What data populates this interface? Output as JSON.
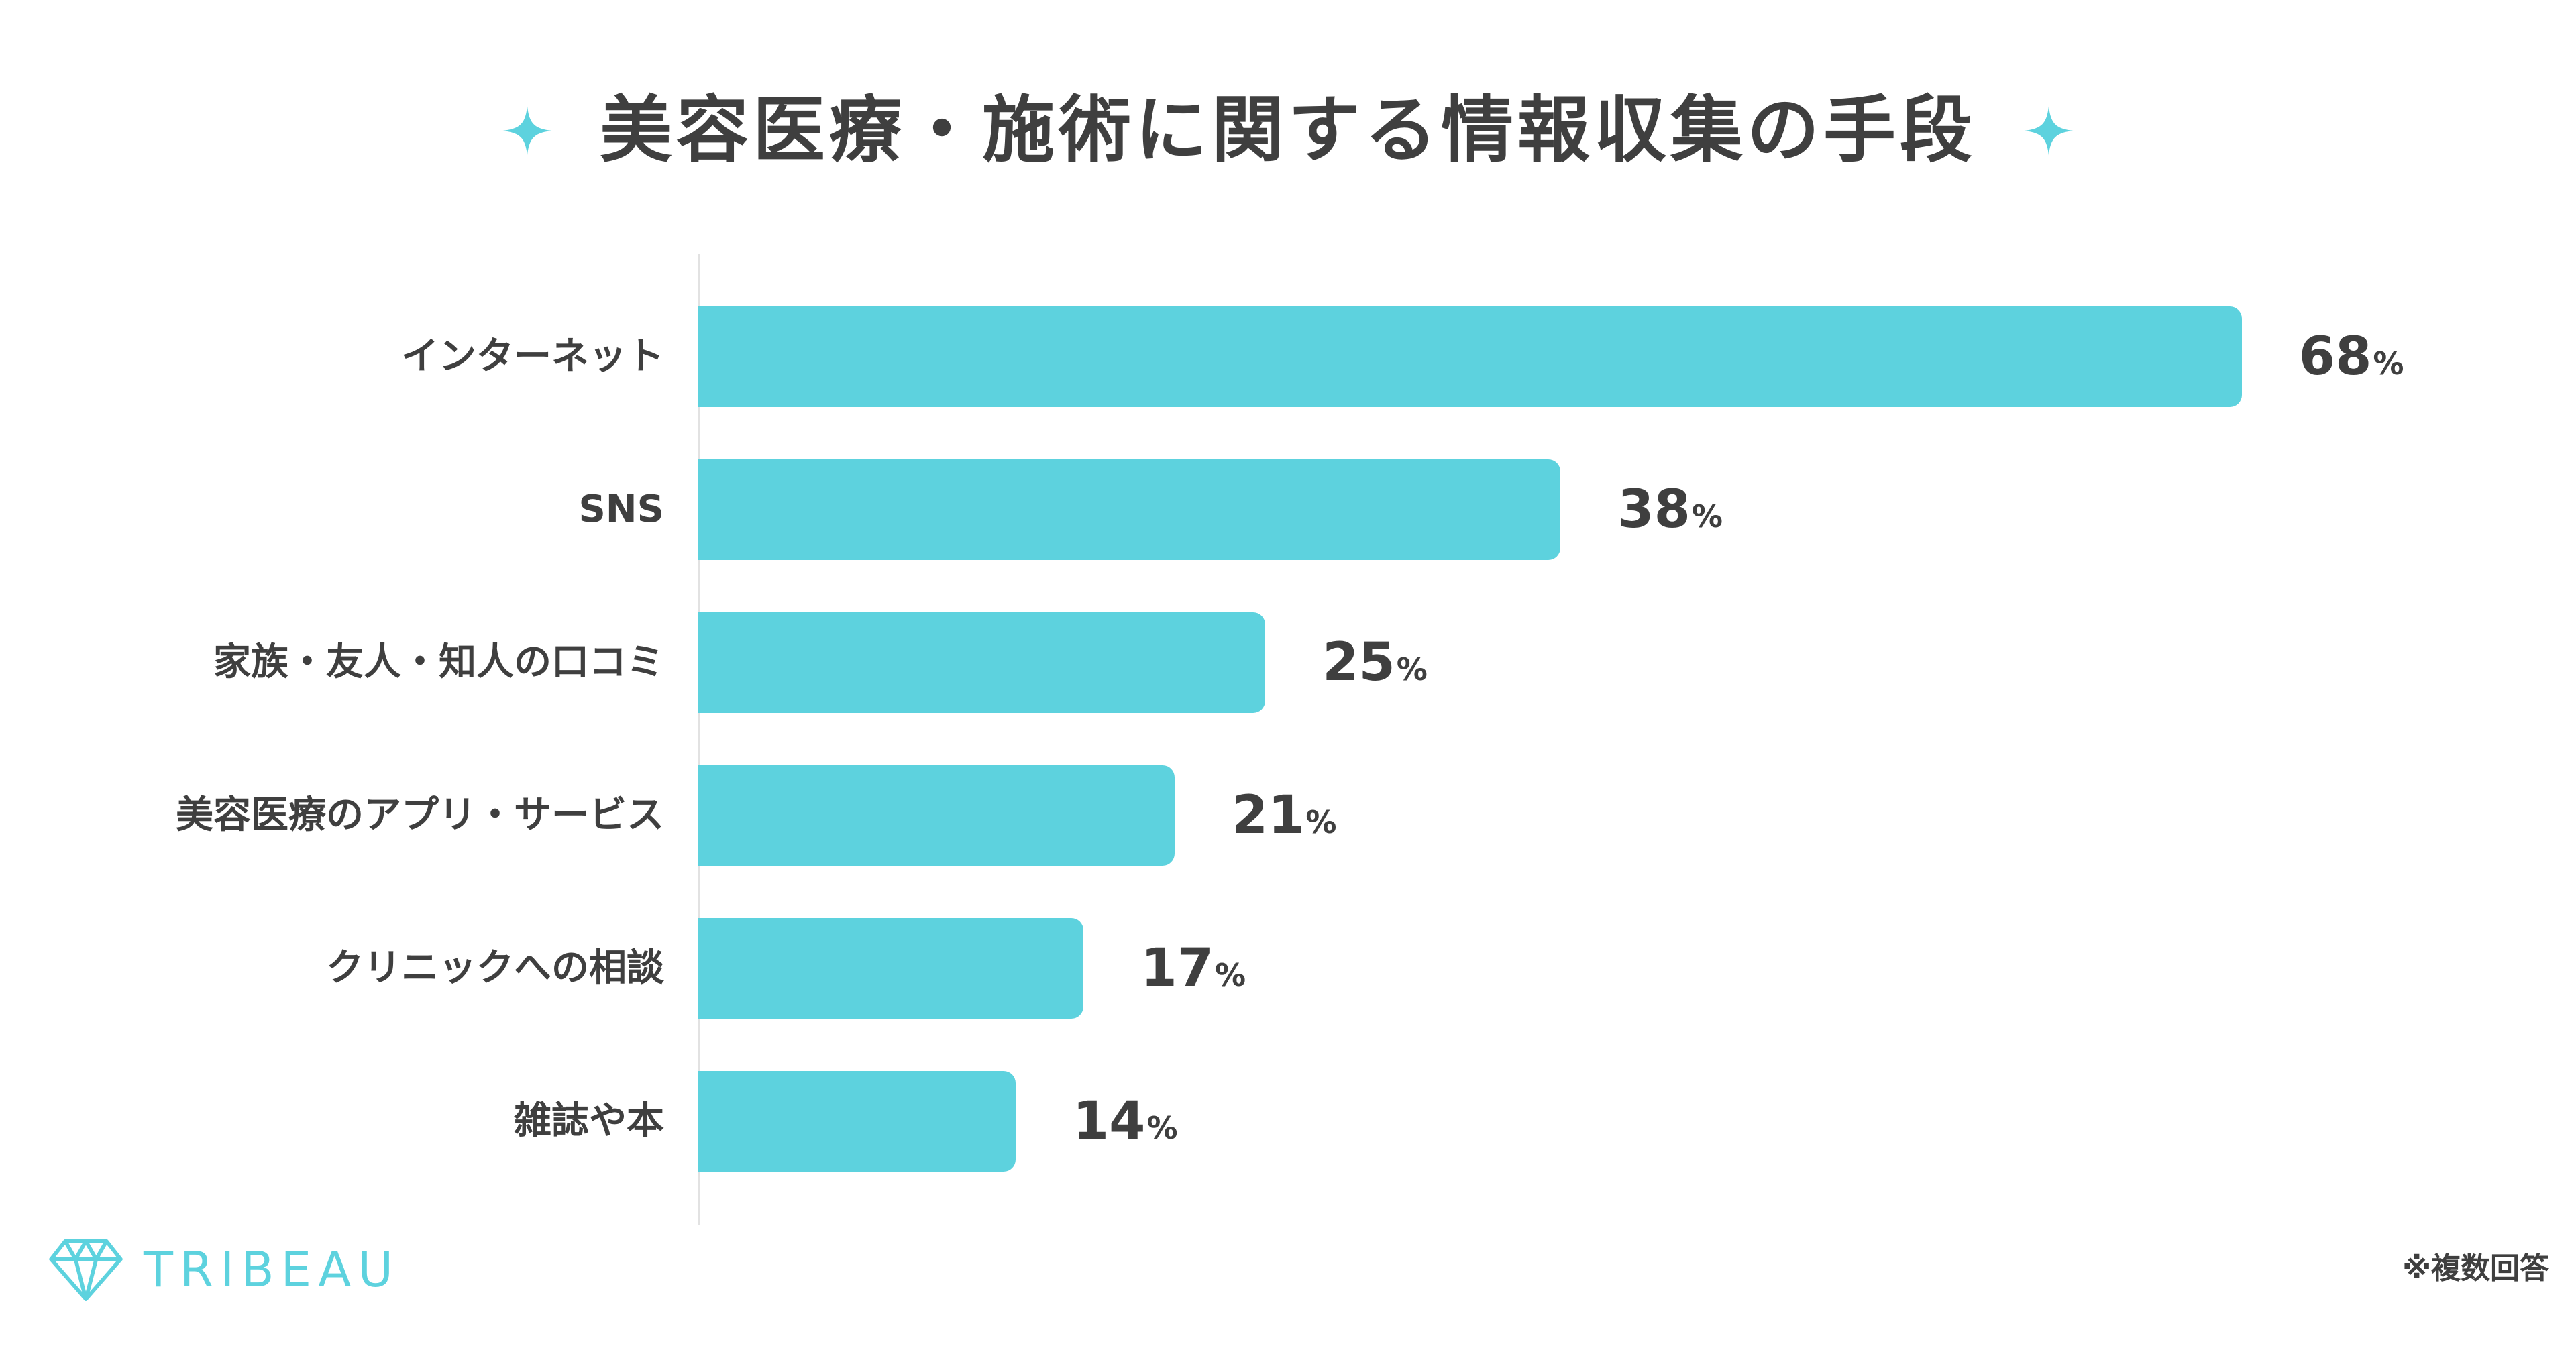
{
  "chart_data": {
    "type": "bar",
    "orientation": "horizontal",
    "title": "美容医療・施術に関する情報収集の手段",
    "categories": [
      "インターネット",
      "SNS",
      "家族・友人・知人の口コミ",
      "美容医療のアプリ・サービス",
      "クリニックへの相談",
      "雑誌や本"
    ],
    "values": [
      68,
      38,
      25,
      21,
      17,
      14
    ],
    "value_unit": "%",
    "xlim": [
      0,
      100
    ],
    "grid": false,
    "bar_color": "#5dd2de"
  },
  "brand": {
    "name": "TRIBEAU",
    "color": "#5dd2de",
    "icon": "diamond-icon"
  },
  "note": "※複数回答",
  "decorations": {
    "title_icon": "sparkle-icon",
    "color": "#5dd2de"
  }
}
